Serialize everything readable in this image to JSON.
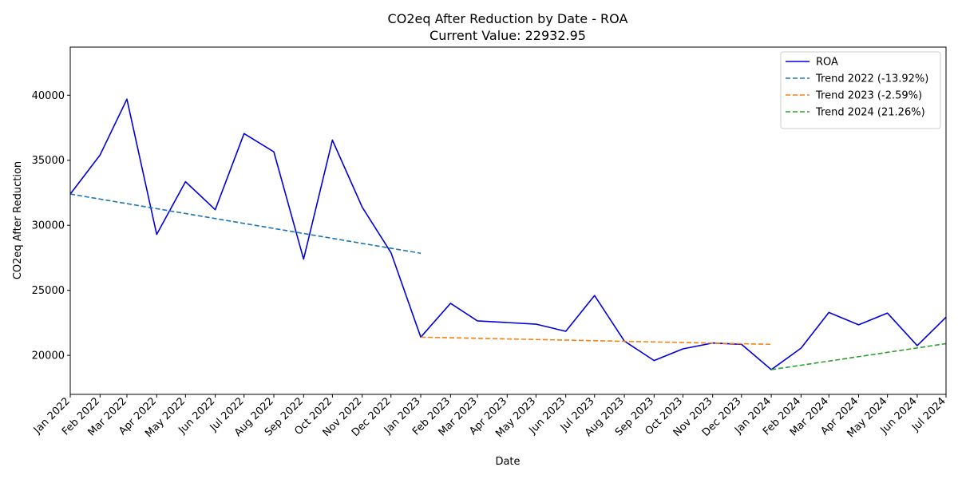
{
  "chart_data": {
    "type": "line",
    "title": "CO2eq After Reduction by Date - ROA",
    "subtitle": "Current Value: 22932.95",
    "xlabel": "Date",
    "ylabel": "CO2eq After Reduction",
    "ylim": [
      17000,
      43700
    ],
    "yticks": [
      20000,
      25000,
      30000,
      35000,
      40000
    ],
    "grid": false,
    "legend_position": "top-right",
    "categories": [
      "Jan 2022",
      "Feb 2022",
      "Mar 2022",
      "Apr 2022",
      "May 2022",
      "Jun 2022",
      "Jul 2022",
      "Aug 2022",
      "Sep 2022",
      "Oct 2022",
      "Nov 2022",
      "Dec 2022",
      "Jan 2023",
      "Feb 2023",
      "Mar 2023",
      "Apr 2023",
      "May 2023",
      "Jun 2023",
      "Jul 2023",
      "Aug 2023",
      "Sep 2023",
      "Oct 2023",
      "Nov 2023",
      "Dec 2023",
      "Jan 2024",
      "Feb 2024",
      "Mar 2024",
      "Apr 2024",
      "May 2024",
      "Jun 2024",
      "Jul 2024"
    ],
    "series": [
      {
        "name": "ROA",
        "style": "solid",
        "color": "#0000dd",
        "points": [
          [
            "2022-01-01",
            32400
          ],
          [
            "2022-02-01",
            35400
          ],
          [
            "2022-03-01",
            39700
          ],
          [
            "2022-04-01",
            29300
          ],
          [
            "2022-05-01",
            33350
          ],
          [
            "2022-06-01",
            31200
          ],
          [
            "2022-07-01",
            37050
          ],
          [
            "2022-08-01",
            35650
          ],
          [
            "2022-09-01",
            27400
          ],
          [
            "2022-10-01",
            36550
          ],
          [
            "2022-11-01",
            31400
          ],
          [
            "2022-12-01",
            27900
          ],
          [
            "2023-01-01",
            21400
          ],
          [
            "2023-02-01",
            24000
          ],
          [
            "2023-03-01",
            22650
          ],
          [
            "2023-05-01",
            22400
          ],
          [
            "2023-06-01",
            21850
          ],
          [
            "2023-07-01",
            24600
          ],
          [
            "2023-08-01",
            21100
          ],
          [
            "2023-09-01",
            19600
          ],
          [
            "2023-10-01",
            20500
          ],
          [
            "2023-11-01",
            20950
          ],
          [
            "2023-12-01",
            20850
          ],
          [
            "2024-01-01",
            18900
          ],
          [
            "2024-02-01",
            20550
          ],
          [
            "2024-03-01",
            23300
          ],
          [
            "2024-04-01",
            22350
          ],
          [
            "2024-05-01",
            23250
          ],
          [
            "2024-06-01",
            20750
          ],
          [
            "2024-07-01",
            22932.95
          ]
        ]
      },
      {
        "name": "Trend 2022 (-13.92%)",
        "style": "dashed",
        "color": "#1f77b4",
        "points": [
          [
            "2022-01-01",
            32400
          ],
          [
            "2023-01-01",
            27850
          ]
        ]
      },
      {
        "name": "Trend 2023 (-2.59%)",
        "style": "dashed",
        "color": "#ff7f0e",
        "points": [
          [
            "2023-01-01",
            21400
          ],
          [
            "2024-01-01",
            20850
          ]
        ]
      },
      {
        "name": "Trend 2024 (21.26%)",
        "style": "dashed",
        "color": "#2ca02c",
        "points": [
          [
            "2024-01-01",
            18900
          ],
          [
            "2024-07-01",
            20900
          ]
        ]
      }
    ]
  }
}
